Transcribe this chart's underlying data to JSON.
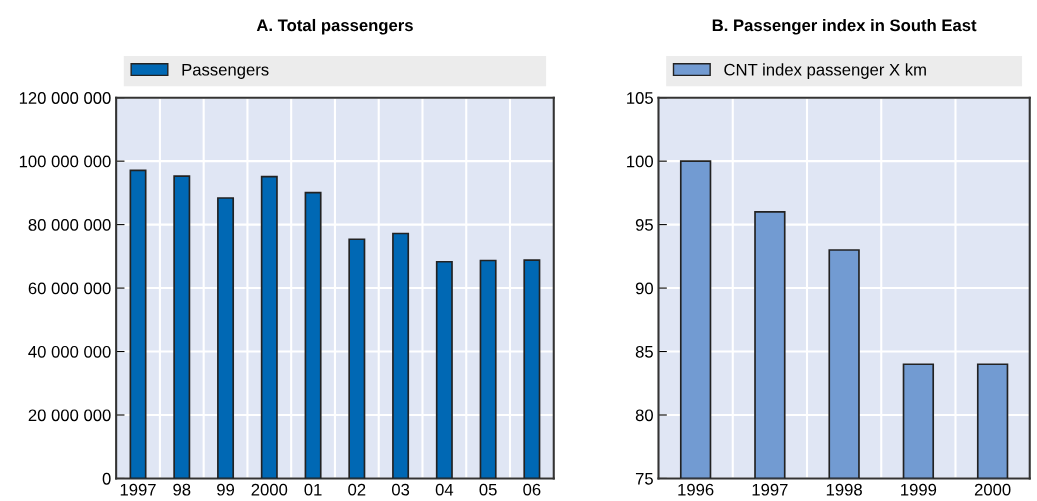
{
  "chart_data": [
    {
      "type": "bar",
      "title": "A. Total passengers",
      "categories": [
        "1997",
        "98",
        "99",
        "2000",
        "01",
        "02",
        "03",
        "04",
        "05",
        "06"
      ],
      "series": [
        {
          "name": "Passengers",
          "color": "#0068b4",
          "values": [
            97100000,
            95300000,
            88400000,
            95100000,
            90100000,
            75400000,
            77200000,
            68300000,
            68700000,
            68800000
          ]
        }
      ],
      "ylim": [
        0,
        120000000
      ],
      "yticks": [
        {
          "value": 0,
          "label": "0"
        },
        {
          "value": 20000000,
          "label": "20 000 000"
        },
        {
          "value": 40000000,
          "label": "40 000 000"
        },
        {
          "value": 60000000,
          "label": "60 000 000"
        },
        {
          "value": 80000000,
          "label": "80 000 000"
        },
        {
          "value": 100000000,
          "label": "100 000 000"
        },
        {
          "value": 120000000,
          "label": "120 000 000"
        }
      ],
      "grid": true,
      "legend": "top"
    },
    {
      "type": "bar",
      "title": "B. Passenger index in South East",
      "categories": [
        "1996",
        "1997",
        "1998",
        "1999",
        "2000"
      ],
      "series": [
        {
          "name": "CNT index passenger X km",
          "color": "#729bd2",
          "values": [
            100,
            96,
            93,
            84,
            84
          ]
        }
      ],
      "ylim": [
        75,
        105
      ],
      "yticks": [
        75,
        80,
        85,
        90,
        95,
        100,
        105
      ],
      "grid": true,
      "legend": "top"
    }
  ]
}
